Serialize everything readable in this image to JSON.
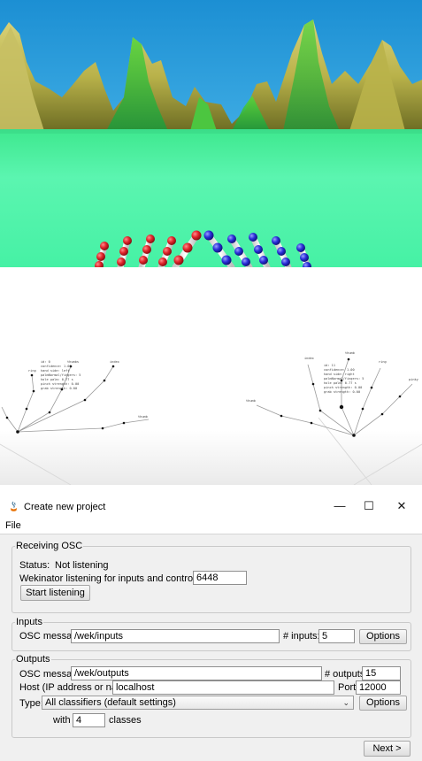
{
  "dialog": {
    "title": "Create new project",
    "window_controls": {
      "minimize": "—",
      "maximize": "☐",
      "close": "✕"
    },
    "menu": [
      "File"
    ],
    "receiving": {
      "legend": "Receiving OSC",
      "status_label": "Status:",
      "status_value": "Not listening",
      "port_label": "Wekinator listening for inputs and control on port:",
      "port_value": "6448",
      "start_button": "Start listening"
    },
    "inputs": {
      "legend": "Inputs",
      "osc_label": "OSC message:",
      "osc_value": "/wek/inputs",
      "count_label": "# inputs:",
      "count_value": "5",
      "options_button": "Options"
    },
    "outputs": {
      "legend": "Outputs",
      "osc_label": "OSC message:",
      "osc_value": "/wek/outputs",
      "count_label": "# outputs:",
      "count_value": "15",
      "host_label": "Host (IP address or name):",
      "host_value": "localhost",
      "port_label": "Port:",
      "port_value": "12000",
      "type_label": "Type:",
      "type_value": "All classifiers (default settings)",
      "options_button": "Options",
      "with_label": "with",
      "classes_value": "4",
      "classes_label": "classes"
    },
    "next_button": "Next >"
  },
  "hand_viz": {
    "left_tags": [
      "ring",
      "thumbs",
      "index",
      "thumb"
    ],
    "right_tags": [
      "index",
      "thumb",
      "ring",
      "pinky",
      "thumb"
    ],
    "left_readout": [
      "id: 0",
      "confidence: 1.00",
      "hand side: left",
      "palmNormal/fingers: 5",
      "hole palm: 0.77 s",
      "pinch strength: 0.00",
      "grab strength: 0.00"
    ],
    "right_readout": [
      "id: 11",
      "confidence: 1.00",
      "hand side: right",
      "palmNormal/fingers: 5",
      "hole palm: 0.77 s",
      "pinch strength: 0.00",
      "grab strength: 0.00"
    ]
  },
  "colors": {
    "sky": "#2a97d4",
    "water": "#4cf3a3",
    "left_hand_joint": "#d8262a",
    "right_hand_joint": "#2a2ed8",
    "dialog_bg": "#f0f0f0"
  }
}
